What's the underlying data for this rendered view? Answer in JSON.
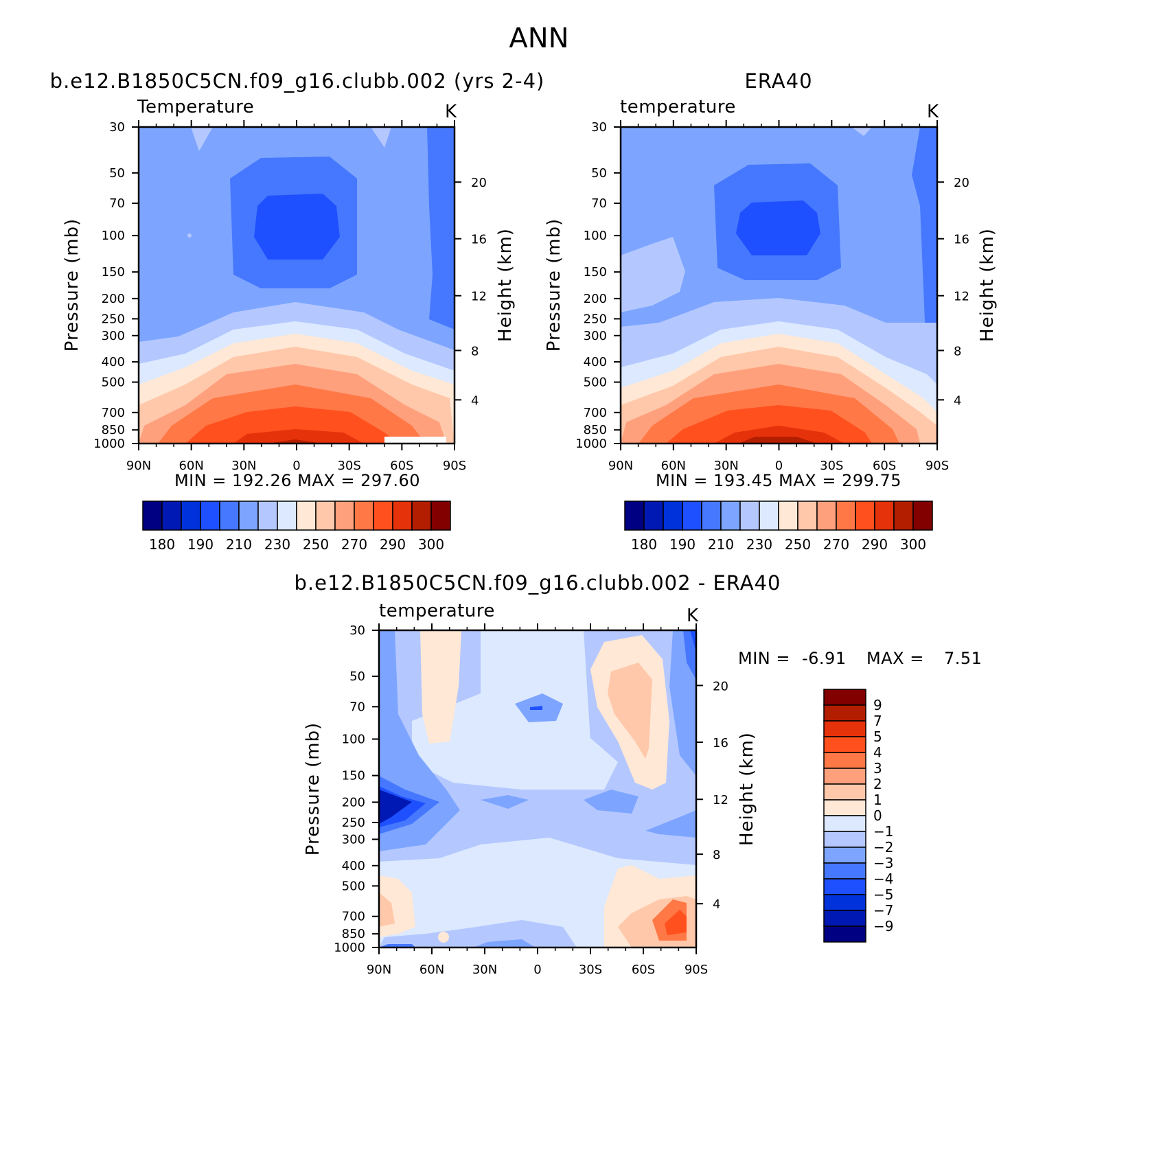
{
  "figure": {
    "title": "ANN",
    "colors": {
      "temp_levels": [
        "#000082",
        "#0019b4",
        "#0032dc",
        "#1e50ff",
        "#4678ff",
        "#7da5ff",
        "#b4c8ff",
        "#dce9ff",
        "#ffe8d5",
        "#ffc8aa",
        "#ffa07d",
        "#ff7846",
        "#ff501e",
        "#e6320a",
        "#b41e00",
        "#820000"
      ],
      "diff_levels": [
        "#000082",
        "#0019b4",
        "#0032dc",
        "#1e50ff",
        "#4678ff",
        "#7da5ff",
        "#b4c8ff",
        "#dce9ff",
        "#ffe8d5",
        "#ffc8aa",
        "#ffa07d",
        "#ff7846",
        "#ff501e",
        "#e6320a",
        "#b41e00",
        "#820000"
      ]
    }
  },
  "panels": [
    {
      "id": "model",
      "case_title": "b.e12.B1850C5CN.f09_g16.clubb.002 (yrs 2-4)",
      "variable": "Temperature",
      "units": "K",
      "ylabel": "Pressure (mb)",
      "ylabel_right": "Height (km)",
      "min_max": "MIN =  192.26   MAX =  297.60"
    },
    {
      "id": "obs",
      "case_title": "ERA40",
      "variable": "temperature",
      "units": "K",
      "ylabel": "Pressure (mb)",
      "ylabel_right": "Height (km)",
      "min_max": "MIN =  193.45   MAX =  299.75"
    },
    {
      "id": "diff",
      "case_title": "b.e12.B1850C5CN.f09_g16.clubb.002 - ERA40",
      "variable": "temperature",
      "units": "K",
      "ylabel": "Pressure (mb)",
      "ylabel_right": "Height (km)",
      "min_label": "MIN =",
      "min_value": "-6.91",
      "max_label": "MAX =",
      "max_value": "7.51"
    }
  ],
  "chart_data": [
    {
      "type": "heatmap",
      "title": "Temperature",
      "xlabel": "",
      "ylabel": "Pressure (mb)",
      "x_ticks": [
        "90N",
        "60N",
        "30N",
        "0",
        "30S",
        "60S",
        "90S"
      ],
      "y_ticks": [
        "30",
        "50",
        "70",
        "100",
        "150",
        "200",
        "250",
        "300",
        "400",
        "500",
        "700",
        "850",
        "1000"
      ],
      "y_ticks_right": [
        "20",
        "16",
        "12",
        "8",
        "4"
      ],
      "ylim": [
        1000,
        30
      ],
      "colorbar_labels": [
        "180",
        "190",
        "210",
        "230",
        "250",
        "270",
        "290",
        "300"
      ],
      "min": 192.26,
      "max": 297.6
    },
    {
      "type": "heatmap",
      "title": "temperature",
      "xlabel": "",
      "ylabel": "Pressure (mb)",
      "x_ticks": [
        "90N",
        "60N",
        "30N",
        "0",
        "30S",
        "60S",
        "90S"
      ],
      "y_ticks": [
        "30",
        "50",
        "70",
        "100",
        "150",
        "200",
        "250",
        "300",
        "400",
        "500",
        "700",
        "850",
        "1000"
      ],
      "y_ticks_right": [
        "20",
        "16",
        "12",
        "8",
        "4"
      ],
      "ylim": [
        1000,
        30
      ],
      "colorbar_labels": [
        "180",
        "190",
        "210",
        "230",
        "250",
        "270",
        "290",
        "300"
      ],
      "min": 193.45,
      "max": 299.75
    },
    {
      "type": "heatmap",
      "title": "temperature",
      "xlabel": "",
      "ylabel": "Pressure (mb)",
      "x_ticks": [
        "90N",
        "60N",
        "30N",
        "0",
        "30S",
        "60S",
        "90S"
      ],
      "y_ticks": [
        "30",
        "50",
        "70",
        "100",
        "150",
        "200",
        "250",
        "300",
        "400",
        "500",
        "700",
        "850",
        "1000"
      ],
      "y_ticks_right": [
        "20",
        "16",
        "12",
        "8",
        "4"
      ],
      "ylim": [
        1000,
        30
      ],
      "colorbar_labels": [
        "9",
        "7",
        "5",
        "4",
        "3",
        "2",
        "1",
        "0",
        "-1",
        "-2",
        "-3",
        "-4",
        "-5",
        "-7",
        "-9"
      ],
      "min": -6.91,
      "max": 7.51
    }
  ]
}
